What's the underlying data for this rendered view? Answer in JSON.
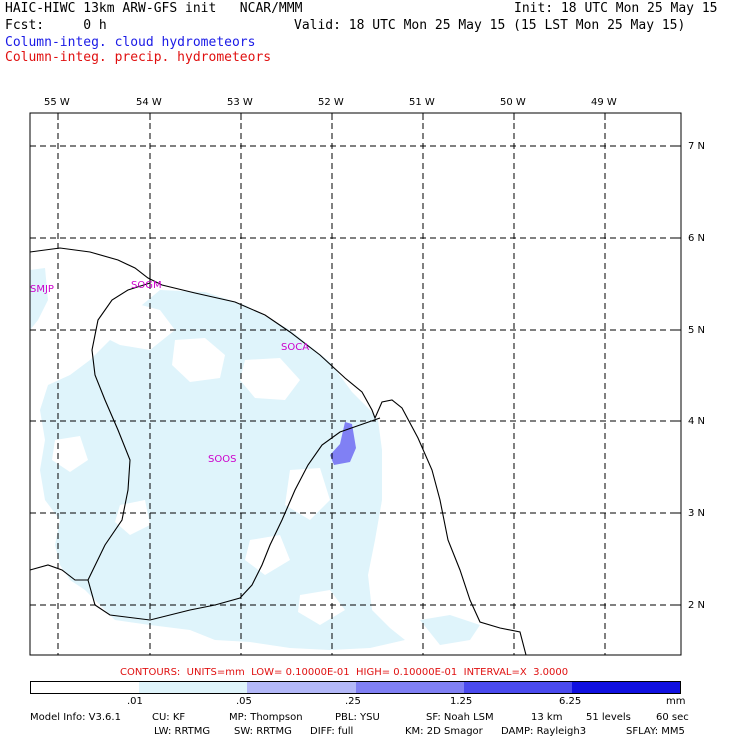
{
  "header": {
    "line1_left": "HAIC-HIWC 13km ARW-GFS init   NCAR/MMM",
    "line1_right": "Init: 18 UTC Mon 25 May 15",
    "line2_left": "Fcst:     0 h",
    "line2_right": "Valid: 18 UTC Mon 25 May 15 (15 LST Mon 25 May 15)",
    "field1": "Column-integ. cloud hydrometeors",
    "field2": "Column-integ. precip. hydrometeors"
  },
  "lon_labels": [
    "55 W",
    "54 W",
    "53 W",
    "52 W",
    "51 W",
    "50 W",
    "49 W"
  ],
  "lat_labels": [
    "7 N",
    "6 N",
    "5 N",
    "4 N",
    "3 N",
    "2 N"
  ],
  "stations": [
    "SMJP",
    "SOGM",
    "SOCA",
    "SOOS"
  ],
  "contour_info": "CONTOURS:  UNITS=mm  LOW= 0.10000E-01  HIGH= 0.10000E-01  INTERVAL=X  3.0000",
  "colorbar": {
    "ticks": [
      ".01",
      ".05",
      ".25",
      "1.25",
      "6.25"
    ],
    "unit": "mm",
    "colors": [
      "#ffffff",
      "#dff4fb",
      "#b3b8f8",
      "#8080f4",
      "#4a4aee",
      "#1010e0"
    ]
  },
  "model_info": {
    "line1": [
      "Model Info: V3.6.1",
      "CU: KF",
      "MP: Thompson",
      "PBL: YSU",
      "SF: Noah LSM",
      "13 km",
      "51 levels",
      "60 sec"
    ],
    "line2": [
      "LW: RRTMG",
      "SW: RRTMG",
      "DIFF: full",
      "KM: 2D Smagor",
      "DAMP: Rayleigh3",
      "SFLAY: MM5"
    ]
  }
}
